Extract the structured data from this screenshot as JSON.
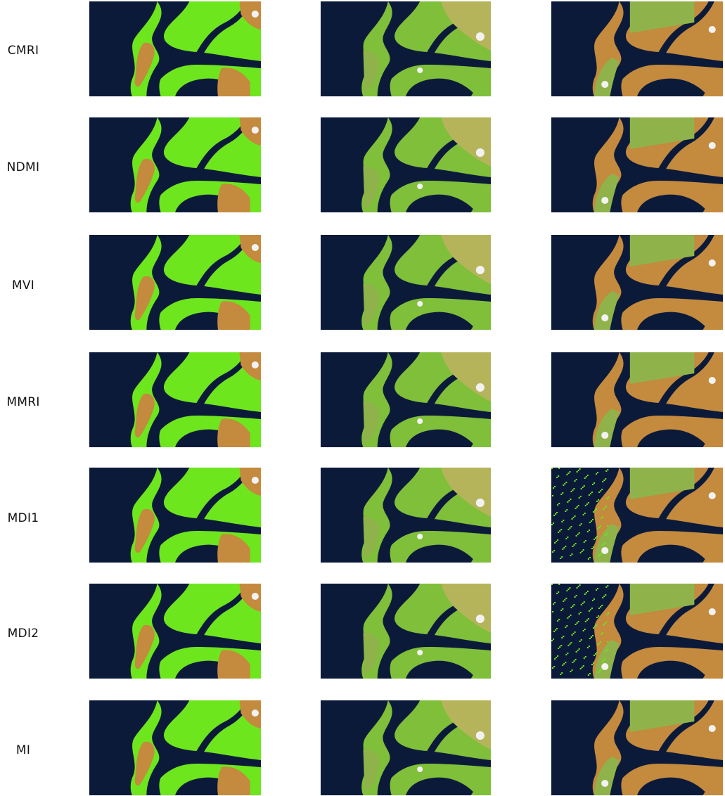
{
  "rows": [
    {
      "label": "CMRI"
    },
    {
      "label": "NDMI"
    },
    {
      "label": "MVI"
    },
    {
      "label": "MMRI"
    },
    {
      "label": "MDI1"
    },
    {
      "label": "MDI2"
    },
    {
      "label": "MI"
    }
  ],
  "colors": {
    "background": "#ffffff",
    "water": "#0c1a3a",
    "mangrove": "#6ee61e",
    "bare_soil": "#c48a3e",
    "cloud": "#f2f2f2"
  }
}
